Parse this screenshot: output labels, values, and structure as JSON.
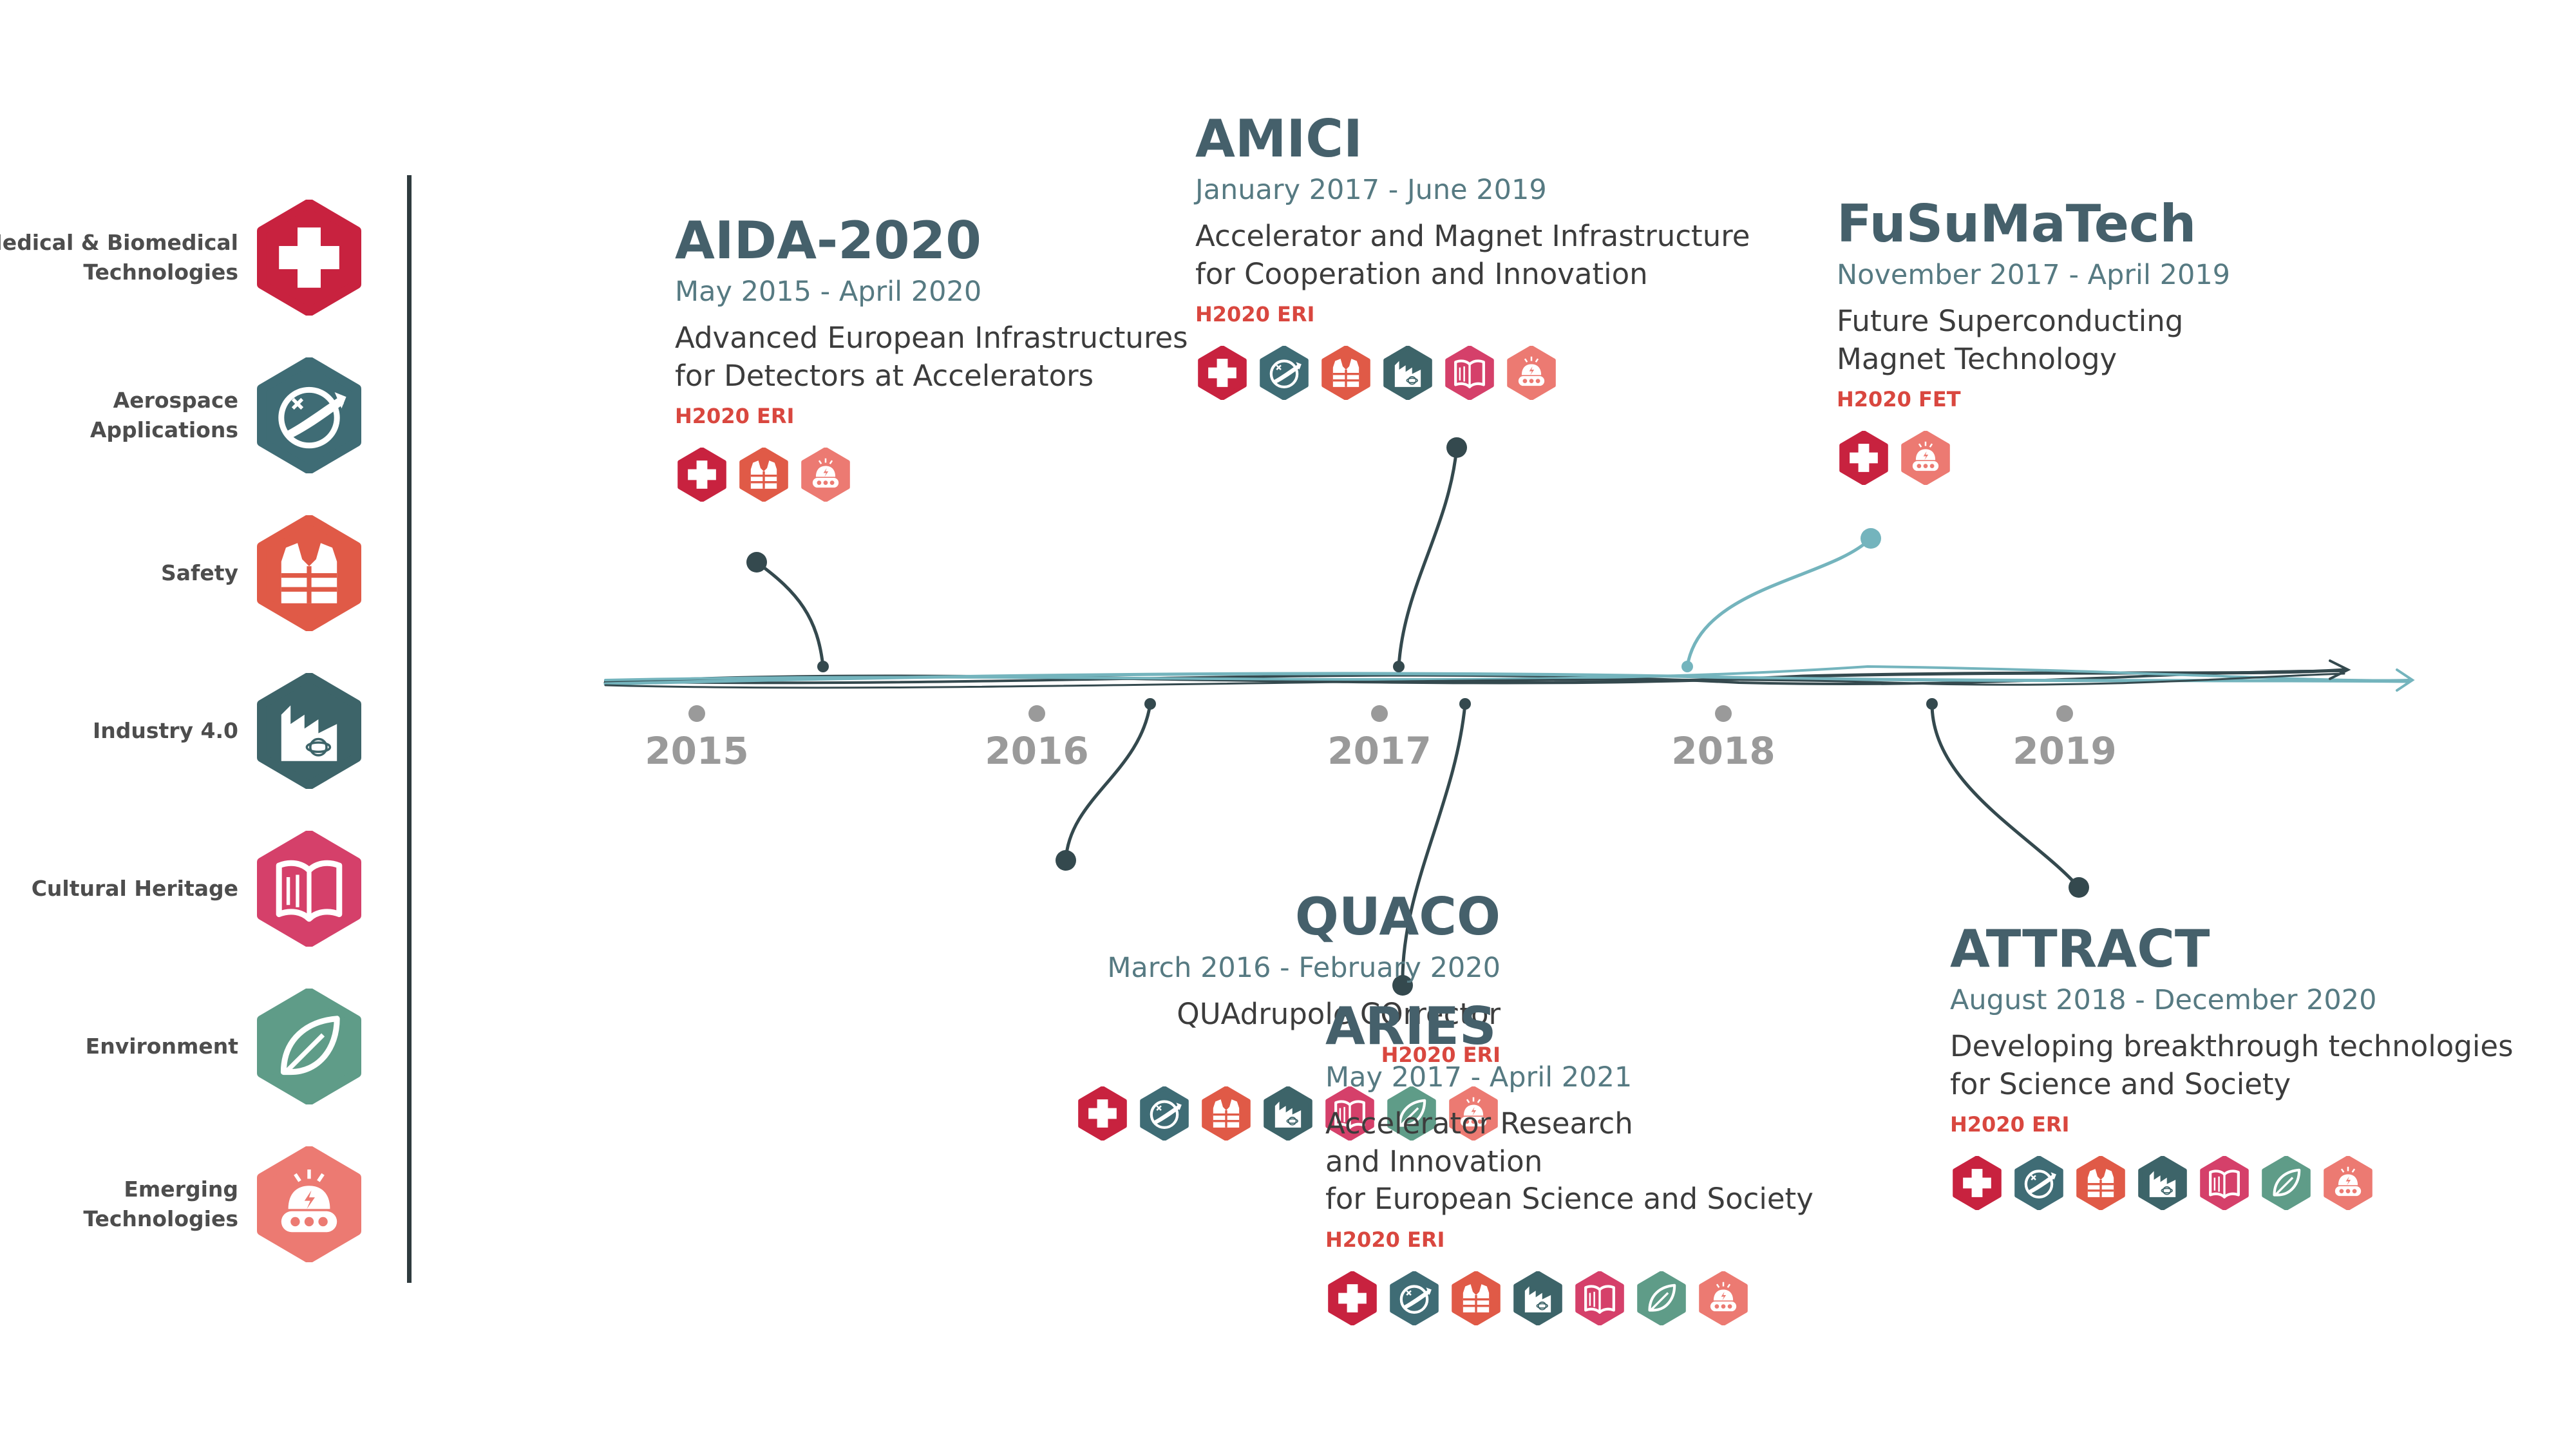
{
  "colors": {
    "medical": "#c8223f",
    "aerospace": "#3f6c75",
    "safety": "#e05a47",
    "industry": "#3d6469",
    "cultural": "#d5406a",
    "environment": "#5f9c88",
    "emerging": "#ec7a72",
    "axis_dark": "#34494e",
    "axis_light": "#74b4bd",
    "year": "#9a9a9a"
  },
  "legend": [
    {
      "key": "medical",
      "label": "Medical & Biomedical Technologies",
      "icon": "cross-icon"
    },
    {
      "key": "aerospace",
      "label": "Aerospace Applications",
      "icon": "plane-icon"
    },
    {
      "key": "safety",
      "label": "Safety",
      "icon": "vest-icon"
    },
    {
      "key": "industry",
      "label": "Industry 4.0",
      "icon": "factory-icon"
    },
    {
      "key": "cultural",
      "label": "Cultural Heritage",
      "icon": "book-icon"
    },
    {
      "key": "environment",
      "label": "Environment",
      "icon": "leaf-icon"
    },
    {
      "key": "emerging",
      "label": "Emerging Technologies",
      "icon": "robot-icon"
    }
  ],
  "years": [
    "2015",
    "2016",
    "2017",
    "2018",
    "2019"
  ],
  "projects": [
    {
      "id": "aida-2020",
      "name": "AIDA-2020",
      "dates": "May 2015 - April 2020",
      "desc": [
        "Advanced European Infrastructures",
        "for Detectors at Accelerators"
      ],
      "program": "H2020 ERI",
      "icons": [
        "medical",
        "safety",
        "emerging"
      ]
    },
    {
      "id": "amici",
      "name": "AMICI",
      "dates": "January 2017 - June 2019",
      "desc": [
        "Accelerator and Magnet Infrastructure",
        "for Cooperation and Innovation"
      ],
      "program": "H2020 ERI",
      "icons": [
        "medical",
        "aerospace",
        "safety",
        "industry",
        "cultural",
        "emerging"
      ]
    },
    {
      "id": "fusumatech",
      "name": "FuSuMaTech",
      "dates": "November 2017 - April 2019",
      "desc": [
        "Future Superconducting",
        "Magnet Technology"
      ],
      "program": "H2020 FET",
      "icons": [
        "medical",
        "emerging"
      ]
    },
    {
      "id": "quaco",
      "name": "QUACO",
      "dates": "March 2016 - February 2020",
      "desc": [
        "QUAdrupole COrrector"
      ],
      "program": "H2020 ERI",
      "icons": [
        "medical",
        "aerospace",
        "safety",
        "industry",
        "cultural",
        "environment",
        "emerging"
      ]
    },
    {
      "id": "aries",
      "name": "ARIES",
      "dates": "May 2017 - April 2021",
      "desc": [
        "Accelerator Research",
        "and Innovation",
        "for European Science and Society"
      ],
      "program": "H2020 ERI",
      "icons": [
        "medical",
        "aerospace",
        "safety",
        "industry",
        "cultural",
        "environment",
        "emerging"
      ]
    },
    {
      "id": "attract",
      "name": "ATTRACT",
      "dates": "August 2018 - December 2020",
      "desc": [
        "Developing breakthrough technologies",
        "for Science and Society"
      ],
      "program": "H2020 ERI",
      "icons": [
        "medical",
        "aerospace",
        "safety",
        "industry",
        "cultural",
        "environment",
        "emerging"
      ]
    }
  ]
}
